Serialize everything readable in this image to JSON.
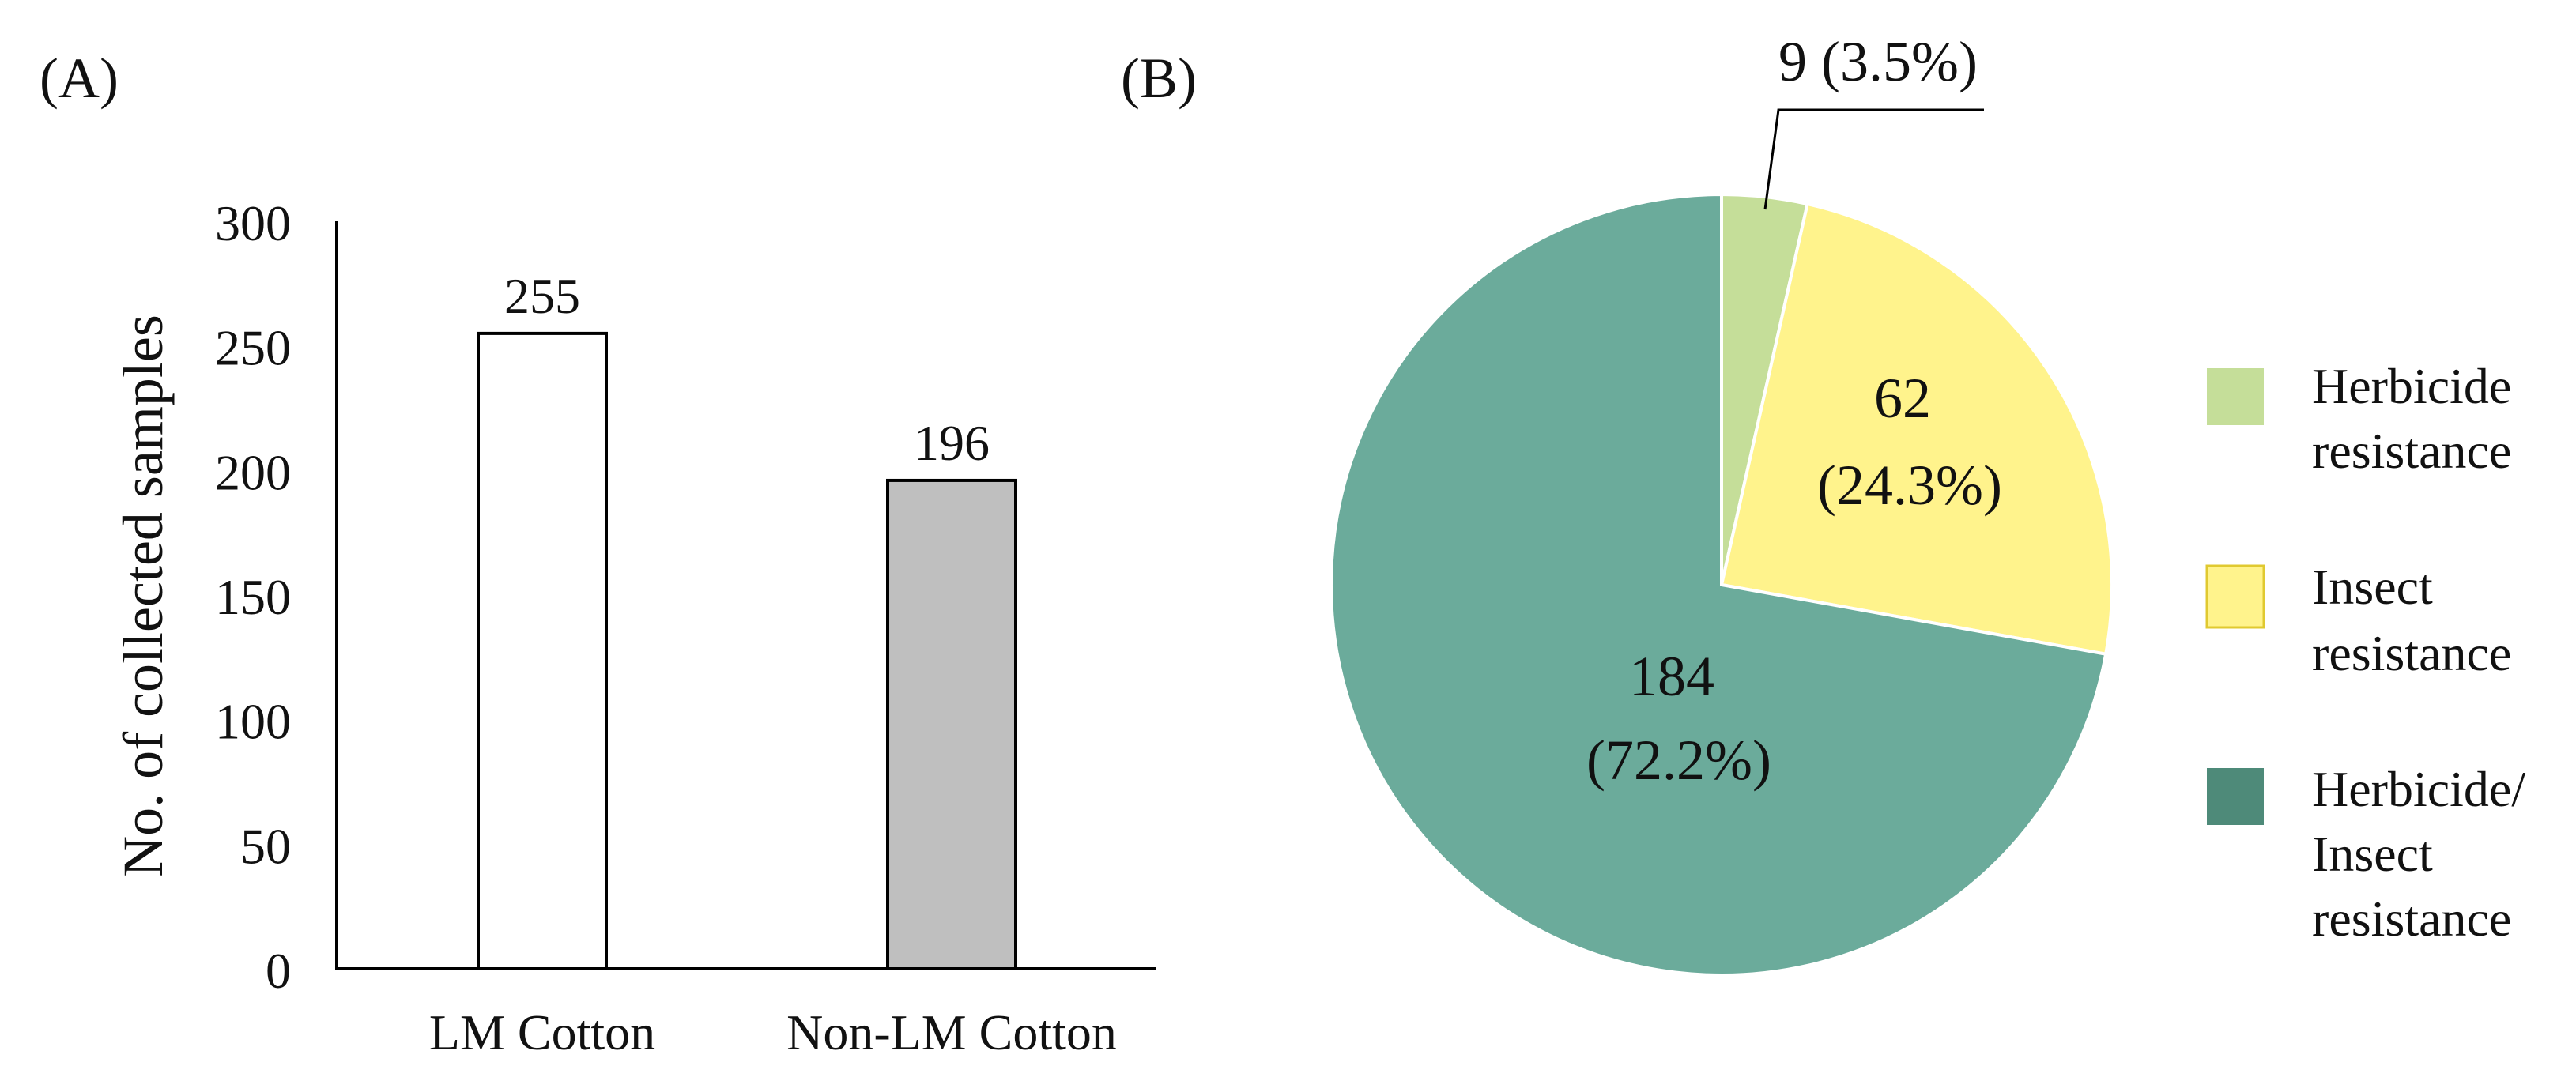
{
  "panel_a": {
    "label": "(A)"
  },
  "panel_b": {
    "label": "(B)"
  },
  "chart_data": [
    {
      "type": "bar",
      "title": "",
      "xlabel": "",
      "ylabel": "No. of collected samples",
      "categories": [
        "LM Cotton",
        "Non-LM Cotton"
      ],
      "values": [
        255,
        196
      ],
      "data_labels": [
        "255",
        "196"
      ],
      "bar_colors": [
        "#ffffff",
        "#bfbfbf"
      ],
      "ylim": [
        0,
        300
      ],
      "yticks": [
        "0",
        "50",
        "100",
        "150",
        "200",
        "250",
        "300"
      ],
      "grid": false,
      "legend": "none"
    },
    {
      "type": "pie",
      "title": "",
      "slices": [
        {
          "name": "Herbicide resistance",
          "value": 9,
          "percent": 3.5,
          "label": "9 (3.5%)",
          "color": "#c5de99"
        },
        {
          "name": "Insect resistance",
          "value": 62,
          "percent": 24.3,
          "label_lines": [
            "62",
            "(24.3%)"
          ],
          "color": "#fff38c"
        },
        {
          "name": "Herbicide/Insect resistance",
          "value": 184,
          "percent": 72.2,
          "label_lines": [
            "184",
            "(72.2%)"
          ],
          "color": "#6bab9b"
        }
      ],
      "legend_position": "right",
      "legend": [
        {
          "lines": [
            "Herbicide",
            "resistance"
          ],
          "color": "#c5de99"
        },
        {
          "lines": [
            "Insect",
            "resistance"
          ],
          "color": "#fff38c"
        },
        {
          "lines": [
            "Herbicide/",
            "Insect",
            "resistance"
          ],
          "color": "#4e8a79"
        }
      ]
    }
  ]
}
